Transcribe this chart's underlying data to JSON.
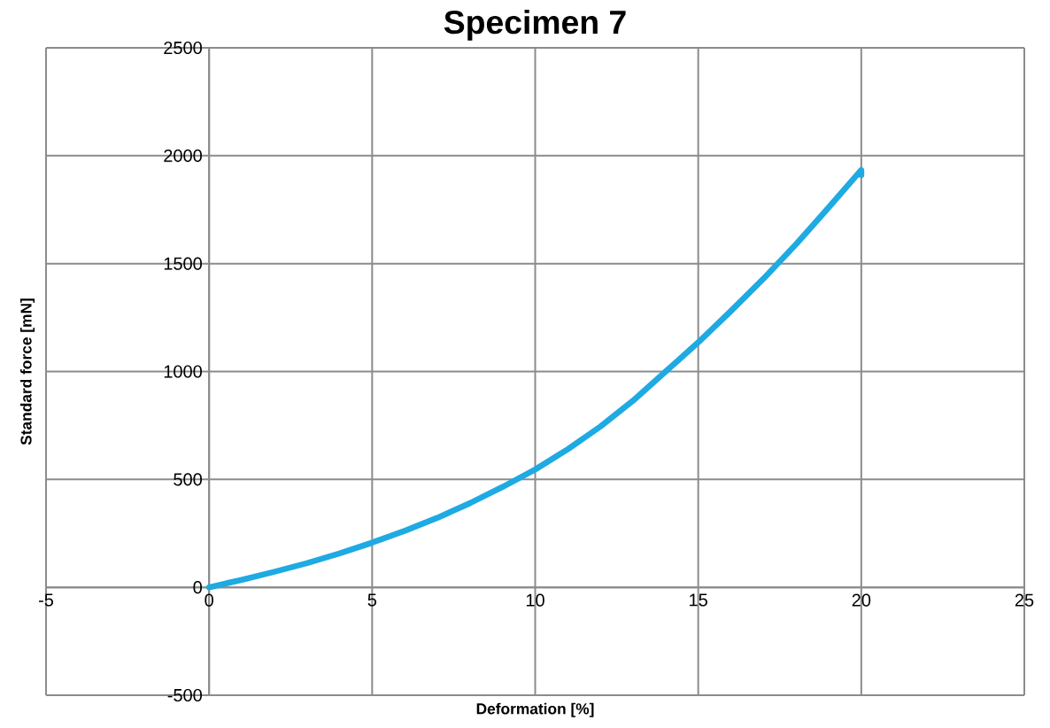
{
  "chart_data": {
    "type": "line",
    "title": "Specimen 7",
    "xlabel": "Deformation [%]",
    "ylabel": "Standard force [mN]",
    "x": [
      0,
      1,
      2,
      3,
      4,
      5,
      6,
      7,
      8,
      9,
      10,
      11,
      12,
      13,
      14,
      15,
      16,
      17,
      18,
      19,
      20,
      20
    ],
    "values": [
      0,
      35,
      72,
      112,
      157,
      207,
      262,
      322,
      390,
      465,
      546,
      640,
      745,
      865,
      1000,
      1135,
      1280,
      1430,
      1590,
      1760,
      1934,
      1910
    ],
    "color": "#1eaae2",
    "xlim": [
      -5,
      25
    ],
    "ylim": [
      -500,
      2500
    ],
    "xticks": [
      -5,
      0,
      5,
      10,
      15,
      20,
      25
    ],
    "yticks": [
      -500,
      0,
      500,
      1000,
      1500,
      2000,
      2500
    ],
    "grid": true
  }
}
